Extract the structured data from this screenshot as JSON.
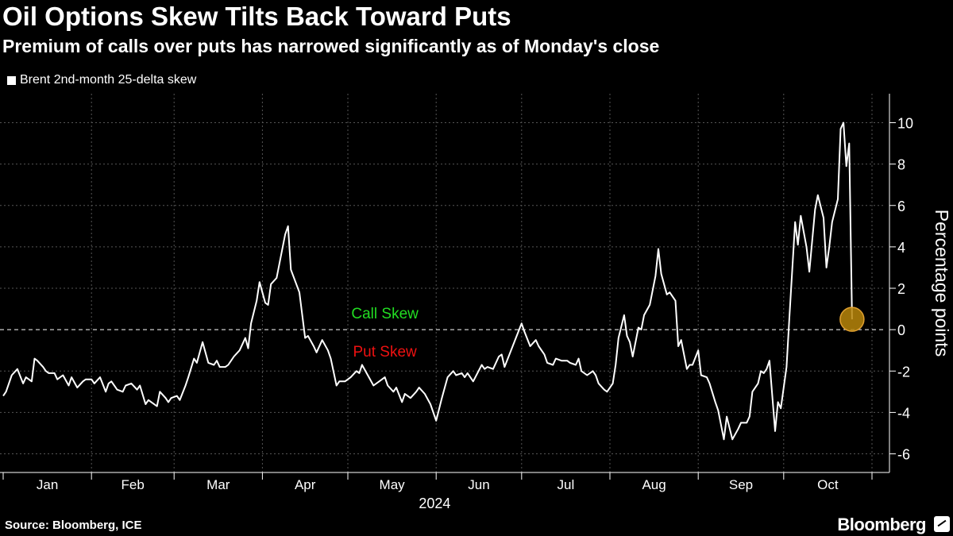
{
  "header": {
    "title": "Oil Options Skew Tilts Back Toward Puts",
    "subtitle": "Premium of calls over puts has narrowed significantly as of Monday's close"
  },
  "legend": {
    "label": "Brent 2nd-month 25-delta skew"
  },
  "footer": {
    "source": "Source: Bloomberg, ICE",
    "brand": "Bloomberg"
  },
  "colors": {
    "background": "#000000",
    "line": "#ffffff",
    "call": "#22dd22",
    "put": "#ee1111",
    "marker": "#b8860b",
    "grid": "#555555"
  },
  "chart_data": {
    "type": "line",
    "title": "Oil Options Skew Tilts Back Toward Puts",
    "ylabel": "Percentage points",
    "xlabel": "2024",
    "ylim": [
      -6.9,
      11.4
    ],
    "yticks": [
      -6,
      -4,
      -2,
      0,
      2,
      4,
      6,
      8,
      10
    ],
    "x_range_days": [
      0,
      305
    ],
    "month_starts": [
      0,
      31,
      60,
      91,
      121,
      152,
      182,
      213,
      244,
      274,
      305
    ],
    "month_labels": [
      "Jan",
      "Feb",
      "Mar",
      "Apr",
      "May",
      "Jun",
      "Jul",
      "Aug",
      "Sep",
      "Oct"
    ],
    "year_label": "2024",
    "annotations": {
      "call": "Call Skew",
      "put": "Put Skew"
    },
    "series": [
      {
        "name": "Brent 2nd-month 25-delta skew",
        "x": [
          0,
          1,
          3,
          5,
          7,
          8,
          10,
          11,
          12,
          14,
          15,
          16,
          18,
          19,
          21,
          23,
          24,
          26,
          28,
          29,
          31,
          32,
          34,
          36,
          37,
          38,
          40,
          42,
          43,
          45,
          47,
          48,
          50,
          51,
          54,
          55,
          57,
          58,
          59,
          61,
          62,
          64,
          65,
          67,
          68,
          70,
          72,
          74,
          75,
          76,
          78,
          79,
          81,
          83,
          85,
          86,
          87,
          89,
          90,
          92,
          93,
          94,
          96,
          97,
          99,
          100,
          101,
          104,
          106,
          107,
          109,
          110,
          112,
          114,
          115,
          117,
          118,
          120,
          122,
          124,
          125,
          126,
          128,
          130,
          132,
          134,
          135,
          137,
          138,
          140,
          141,
          143,
          145,
          146,
          148,
          150,
          152,
          154,
          155,
          156,
          158,
          159,
          161,
          162,
          163,
          165,
          168,
          169,
          170,
          172,
          174,
          175,
          176,
          178,
          180,
          182,
          183,
          185,
          187,
          188,
          190,
          191,
          193,
          194,
          196,
          198,
          199,
          201,
          202,
          203,
          205,
          207,
          208,
          209,
          211,
          212,
          214,
          215,
          216,
          218,
          219,
          220,
          221,
          223,
          224,
          225,
          227,
          229,
          230,
          231,
          233,
          234,
          236,
          237,
          238,
          240,
          241,
          242,
          244,
          245,
          247,
          248,
          250,
          251,
          253,
          254,
          256,
          258,
          259,
          261,
          262,
          263,
          265,
          266,
          267,
          268,
          269,
          271,
          272,
          273,
          275,
          276,
          278,
          279,
          280,
          282,
          283,
          285,
          286,
          288,
          289,
          290,
          291,
          293,
          294,
          295,
          296,
          297,
          298
        ],
        "y": [
          -3.2,
          -3.0,
          -2.2,
          -1.9,
          -2.6,
          -2.3,
          -2.5,
          -1.4,
          -1.5,
          -1.8,
          -2.0,
          -2.1,
          -2.1,
          -2.4,
          -2.2,
          -2.7,
          -2.3,
          -2.8,
          -2.5,
          -2.4,
          -2.4,
          -2.6,
          -2.3,
          -3.0,
          -2.6,
          -2.5,
          -2.9,
          -3.0,
          -2.7,
          -2.6,
          -2.9,
          -2.7,
          -3.6,
          -3.4,
          -3.7,
          -3.0,
          -3.3,
          -3.5,
          -3.3,
          -3.2,
          -3.4,
          -2.7,
          -2.3,
          -1.4,
          -1.6,
          -0.6,
          -1.6,
          -1.7,
          -1.5,
          -1.8,
          -1.8,
          -1.7,
          -1.3,
          -1.0,
          -0.4,
          -0.9,
          0.3,
          1.4,
          2.3,
          1.3,
          1.2,
          2.2,
          2.5,
          3.2,
          4.6,
          5.0,
          2.9,
          1.8,
          -0.4,
          -0.3,
          -0.8,
          -1.1,
          -0.5,
          -1.0,
          -1.4,
          -2.7,
          -2.5,
          -2.5,
          -2.3,
          -2.0,
          -2.1,
          -1.7,
          -2.2,
          -2.7,
          -2.5,
          -2.3,
          -2.7,
          -3.0,
          -2.8,
          -3.5,
          -3.1,
          -3.3,
          -3.0,
          -2.8,
          -3.1,
          -3.6,
          -4.4,
          -3.3,
          -2.8,
          -2.3,
          -2.0,
          -2.2,
          -2.1,
          -2.3,
          -2.1,
          -2.5,
          -1.7,
          -1.9,
          -1.8,
          -1.9,
          -1.3,
          -1.2,
          -1.8,
          -1.1,
          -0.4,
          0.3,
          -0.1,
          -0.8,
          -0.5,
          -0.8,
          -1.2,
          -1.6,
          -1.7,
          -1.4,
          -1.5,
          -1.5,
          -1.6,
          -1.7,
          -1.4,
          -2.0,
          -2.2,
          -2.0,
          -2.2,
          -2.6,
          -2.9,
          -3.0,
          -2.6,
          -1.7,
          -0.4,
          0.7,
          -0.3,
          -0.6,
          -1.3,
          0.1,
          0.0,
          0.7,
          1.2,
          2.6,
          3.9,
          2.7,
          1.7,
          1.8,
          1.4,
          -0.8,
          -0.5,
          -1.9,
          -1.7,
          -1.7,
          -1.0,
          -2.2,
          -2.3,
          -2.6,
          -3.5,
          -3.9,
          -5.3,
          -4.2,
          -5.3,
          -4.8,
          -4.5,
          -4.5,
          -4.2,
          -3.0,
          -2.6,
          -2.0,
          -2.1,
          -1.9,
          -1.5,
          -4.9,
          -3.5,
          -3.8,
          -1.8,
          0.6,
          5.2,
          4.1,
          5.5,
          4.0,
          2.8,
          5.8,
          6.5,
          5.4,
          3.0,
          4.0,
          5.2,
          6.3,
          9.7,
          10.0,
          7.9,
          9.0,
          0.5
        ],
        "endpoint_marker_value": 0.5
      }
    ]
  }
}
